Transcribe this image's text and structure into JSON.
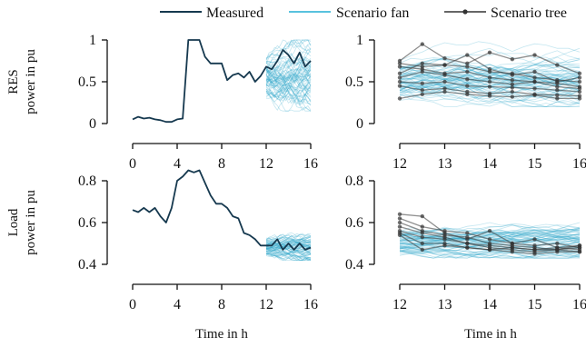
{
  "legend": {
    "measured": "Measured",
    "fan": "Scenario fan",
    "tree": "Scenario tree"
  },
  "colors": {
    "measured": "#16394f",
    "fan": "#2aa6c9",
    "tree": "#333333",
    "axis": "#111111"
  },
  "axis_titles": {
    "res_line1": "RES",
    "res_line2": "power in pu",
    "load_line1": "Load",
    "load_line2": "power in pu",
    "time_left": "Time in h",
    "time_right": "Time in h"
  },
  "chart_data": [
    {
      "id": "res-left",
      "type": "line",
      "title": "",
      "ylabel": "RES power in pu",
      "xlabel": "",
      "xlim": [
        0,
        16
      ],
      "ylim": [
        0,
        1
      ],
      "xticks": [
        0,
        4,
        8,
        12,
        16
      ],
      "yticks": [
        0,
        0.5,
        1
      ],
      "ytick_labels": [
        "0",
        "0.5",
        "1"
      ],
      "measured": {
        "x": [
          0,
          0.5,
          1,
          1.5,
          2,
          2.5,
          3,
          3.5,
          4,
          4.5,
          5,
          5.5,
          6,
          6.5,
          7,
          7.5,
          8,
          8.5,
          9,
          9.5,
          10,
          10.5,
          11,
          11.5,
          12,
          12.5,
          13,
          13.5,
          14,
          14.5,
          15,
          15.5,
          16
        ],
        "y": [
          0.05,
          0.08,
          0.06,
          0.07,
          0.05,
          0.04,
          0.02,
          0.02,
          0.05,
          0.06,
          1.0,
          1.0,
          1.0,
          0.8,
          0.72,
          0.72,
          0.72,
          0.52,
          0.58,
          0.6,
          0.55,
          0.62,
          0.5,
          0.57,
          0.68,
          0.65,
          0.75,
          0.88,
          0.82,
          0.72,
          0.85,
          0.68,
          0.75
        ]
      },
      "fan": {
        "x_start": 12,
        "x_end": 16,
        "center": 0.55,
        "spread_low": 0.15,
        "spread_high": 1.0
      }
    },
    {
      "id": "res-right",
      "type": "line",
      "title": "",
      "xlim": [
        12,
        16
      ],
      "ylim": [
        0,
        1
      ],
      "xticks": [
        12,
        13,
        14,
        15,
        16
      ],
      "yticks": [
        0,
        0.5,
        1
      ],
      "ytick_labels": [
        "0",
        "0.5",
        "1"
      ],
      "fan": {
        "x_start": 12,
        "x_end": 16,
        "center": 0.5,
        "spread_low": 0.2,
        "spread_high": 0.98
      },
      "tree": {
        "x": [
          12,
          12.5,
          13,
          13.5,
          14,
          14.5,
          15,
          15.5,
          16
        ],
        "series": [
          [
            0.75,
            0.95,
            0.78,
            0.72,
            0.85,
            0.77,
            0.82,
            0.7,
            0.6
          ],
          [
            0.72,
            0.68,
            0.7,
            0.82,
            0.65,
            0.58,
            0.62,
            0.5,
            0.55
          ],
          [
            0.68,
            0.65,
            0.6,
            0.62,
            0.55,
            0.52,
            0.5,
            0.48,
            0.44
          ],
          [
            0.55,
            0.62,
            0.58,
            0.53,
            0.5,
            0.47,
            0.5,
            0.44,
            0.42
          ],
          [
            0.5,
            0.48,
            0.5,
            0.45,
            0.44,
            0.43,
            0.42,
            0.4,
            0.38
          ],
          [
            0.45,
            0.4,
            0.42,
            0.38,
            0.36,
            0.38,
            0.35,
            0.34,
            0.33
          ],
          [
            0.3,
            0.35,
            0.38,
            0.35,
            0.33,
            0.32,
            0.34,
            0.3,
            0.3
          ],
          [
            0.6,
            0.72,
            0.7,
            0.68,
            0.62,
            0.6,
            0.55,
            0.52,
            0.5
          ]
        ]
      }
    },
    {
      "id": "load-left",
      "type": "line",
      "title": "",
      "ylabel": "Load power in pu",
      "xlabel": "Time in h",
      "xlim": [
        0,
        16
      ],
      "ylim": [
        0.35,
        0.9
      ],
      "xticks": [
        0,
        4,
        8,
        12,
        16
      ],
      "yticks": [
        0.4,
        0.6,
        0.8
      ],
      "ytick_labels": [
        "0.4",
        "0.6",
        "0.8"
      ],
      "measured": {
        "x": [
          0,
          0.5,
          1,
          1.5,
          2,
          2.5,
          3,
          3.5,
          4,
          4.5,
          5,
          5.5,
          6,
          6.5,
          7,
          7.5,
          8,
          8.5,
          9,
          9.5,
          10,
          10.5,
          11,
          11.5,
          12,
          12.5,
          13,
          13.5,
          14,
          14.5,
          15,
          15.5,
          16
        ],
        "y": [
          0.66,
          0.65,
          0.67,
          0.65,
          0.67,
          0.63,
          0.6,
          0.67,
          0.8,
          0.82,
          0.85,
          0.84,
          0.85,
          0.79,
          0.73,
          0.69,
          0.69,
          0.67,
          0.63,
          0.62,
          0.55,
          0.54,
          0.52,
          0.49,
          0.49,
          0.49,
          0.52,
          0.47,
          0.5,
          0.47,
          0.5,
          0.47,
          0.48
        ]
      },
      "fan": {
        "x_start": 12,
        "x_end": 16,
        "center": 0.485,
        "spread_low": 0.42,
        "spread_high": 0.56
      }
    },
    {
      "id": "load-right",
      "type": "line",
      "title": "",
      "xlabel": "Time in h",
      "xlim": [
        12,
        16
      ],
      "ylim": [
        0.35,
        0.9
      ],
      "xticks": [
        12,
        13,
        14,
        15,
        16
      ],
      "yticks": [
        0.4,
        0.6,
        0.8
      ],
      "ytick_labels": [
        "0.4",
        "0.6",
        "0.8"
      ],
      "fan": {
        "x_start": 12,
        "x_end": 16,
        "center": 0.5,
        "spread_low": 0.43,
        "spread_high": 0.64
      },
      "tree": {
        "x": [
          12,
          12.5,
          13,
          13.5,
          14,
          14.5,
          15,
          15.5,
          16
        ],
        "series": [
          [
            0.64,
            0.63,
            0.55,
            0.52,
            0.56,
            0.5,
            0.52,
            0.48,
            0.49
          ],
          [
            0.62,
            0.58,
            0.56,
            0.55,
            0.52,
            0.5,
            0.49,
            0.5,
            0.48
          ],
          [
            0.6,
            0.56,
            0.54,
            0.53,
            0.5,
            0.49,
            0.48,
            0.47,
            0.48
          ],
          [
            0.58,
            0.55,
            0.53,
            0.5,
            0.49,
            0.48,
            0.47,
            0.48,
            0.47
          ],
          [
            0.56,
            0.53,
            0.52,
            0.5,
            0.48,
            0.47,
            0.46,
            0.47,
            0.46
          ],
          [
            0.55,
            0.5,
            0.5,
            0.48,
            0.47,
            0.46,
            0.45,
            0.46,
            0.46
          ],
          [
            0.54,
            0.47,
            0.49,
            0.48,
            0.47,
            0.48,
            0.47,
            0.47,
            0.49
          ]
        ]
      }
    }
  ]
}
